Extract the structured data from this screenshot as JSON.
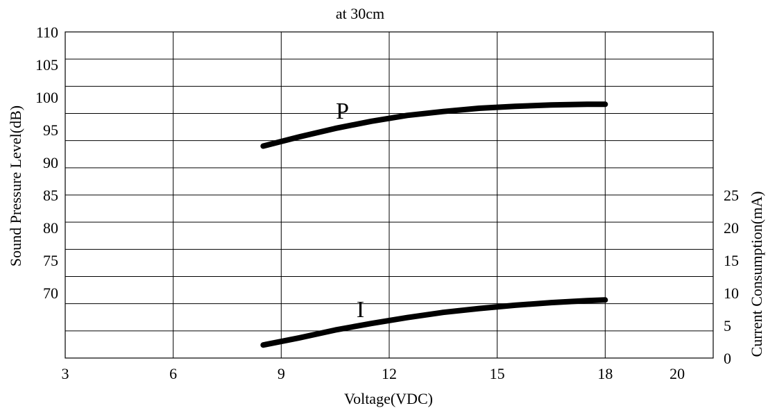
{
  "chart_data": {
    "type": "line",
    "title": "at 30cm",
    "xlabel": "Voltage(VDC)",
    "ylabel_left": "Sound Pressure Level(dB)",
    "ylabel_right": "Current Consumption(mA)",
    "xlim": [
      3,
      21
    ],
    "x_ticks": [
      3,
      6,
      9,
      12,
      15,
      18,
      20
    ],
    "x_tick_labels": [
      "3",
      "6",
      "9",
      "12",
      "15",
      "18",
      "20"
    ],
    "y_left_range": [
      60,
      110
    ],
    "y_left_ticks": [
      70,
      75,
      80,
      85,
      90,
      95,
      100,
      105,
      110
    ],
    "y_left_tick_labels": [
      "70",
      "75",
      "80",
      "85",
      "90",
      "95",
      "100",
      "105",
      "110"
    ],
    "y_right_range": [
      0,
      50
    ],
    "y_right_ticks": [
      0,
      5,
      10,
      15,
      20,
      25
    ],
    "y_right_tick_labels": [
      "0",
      "5",
      "10",
      "15",
      "20",
      "25"
    ],
    "grid": true,
    "series": [
      {
        "name": "P",
        "axis": "left",
        "x": [
          8.5,
          9.5,
          10.5,
          11.5,
          12.5,
          13.5,
          14.5,
          15.5,
          16.5,
          17.5,
          18
        ],
        "y": [
          92.5,
          93.9,
          95.2,
          96.3,
          97.2,
          97.8,
          98.3,
          98.6,
          98.8,
          98.9,
          98.9
        ]
      },
      {
        "name": "I",
        "axis": "right",
        "x": [
          8.5,
          9.5,
          10.5,
          11.5,
          12.5,
          13.5,
          14.5,
          15.5,
          16.5,
          17.5,
          18
        ],
        "y": [
          2.0,
          3.1,
          4.3,
          5.3,
          6.2,
          7.0,
          7.6,
          8.1,
          8.5,
          8.8,
          8.9
        ]
      }
    ]
  }
}
